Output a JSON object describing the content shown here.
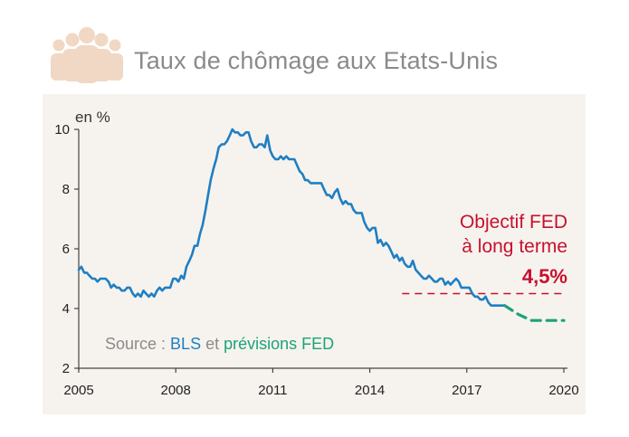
{
  "header": {
    "title": "Taux de chômage aux Etats-Unis",
    "icon": "people-group-icon"
  },
  "colors": {
    "actual": "#1f7fc4",
    "forecast": "#1aa37a",
    "target": "#c8102e",
    "panel": "#f6f3ee",
    "icon": "#f0d8c4"
  },
  "chart_data": {
    "type": "line",
    "title": "Taux de chômage aux Etats-Unis",
    "ylabel": "en %",
    "xlabel": "",
    "xlim": [
      2005,
      2020
    ],
    "ylim": [
      2,
      10
    ],
    "x_ticks": [
      2005,
      2008,
      2011,
      2014,
      2017,
      2020
    ],
    "y_ticks": [
      2,
      4,
      6,
      8,
      10
    ],
    "grid": false,
    "series": [
      {
        "name": "BLS",
        "x": [
          2005.0,
          2005.08,
          2005.17,
          2005.25,
          2005.33,
          2005.42,
          2005.5,
          2005.58,
          2005.67,
          2005.75,
          2005.83,
          2005.92,
          2006.0,
          2006.08,
          2006.17,
          2006.25,
          2006.33,
          2006.42,
          2006.5,
          2006.58,
          2006.67,
          2006.75,
          2006.83,
          2006.92,
          2007.0,
          2007.08,
          2007.17,
          2007.25,
          2007.33,
          2007.42,
          2007.5,
          2007.58,
          2007.67,
          2007.75,
          2007.83,
          2007.92,
          2008.0,
          2008.08,
          2008.17,
          2008.25,
          2008.33,
          2008.42,
          2008.5,
          2008.58,
          2008.67,
          2008.75,
          2008.83,
          2008.92,
          2009.0,
          2009.08,
          2009.17,
          2009.25,
          2009.33,
          2009.42,
          2009.5,
          2009.58,
          2009.67,
          2009.75,
          2009.83,
          2009.92,
          2010.0,
          2010.08,
          2010.17,
          2010.25,
          2010.33,
          2010.42,
          2010.5,
          2010.58,
          2010.67,
          2010.75,
          2010.83,
          2010.92,
          2011.0,
          2011.08,
          2011.17,
          2011.25,
          2011.33,
          2011.42,
          2011.5,
          2011.58,
          2011.67,
          2011.75,
          2011.83,
          2011.92,
          2012.0,
          2012.08,
          2012.17,
          2012.25,
          2012.33,
          2012.42,
          2012.5,
          2012.58,
          2012.67,
          2012.75,
          2012.83,
          2012.92,
          2013.0,
          2013.08,
          2013.17,
          2013.25,
          2013.33,
          2013.42,
          2013.5,
          2013.58,
          2013.67,
          2013.75,
          2013.83,
          2013.92,
          2014.0,
          2014.08,
          2014.17,
          2014.25,
          2014.33,
          2014.42,
          2014.5,
          2014.58,
          2014.67,
          2014.75,
          2014.83,
          2014.92,
          2015.0,
          2015.08,
          2015.17,
          2015.25,
          2015.33,
          2015.42,
          2015.5,
          2015.58,
          2015.67,
          2015.75,
          2015.83,
          2015.92,
          2016.0,
          2016.08,
          2016.17,
          2016.25,
          2016.33,
          2016.42,
          2016.5,
          2016.58,
          2016.67,
          2016.75,
          2016.83,
          2016.92,
          2017.0,
          2017.08,
          2017.17,
          2017.25,
          2017.33,
          2017.42,
          2017.5,
          2017.58,
          2017.67,
          2017.75,
          2017.83,
          2017.92,
          2018.0,
          2018.08,
          2018.17
        ],
        "values": [
          5.3,
          5.4,
          5.2,
          5.2,
          5.1,
          5.0,
          5.0,
          4.9,
          5.0,
          5.0,
          5.0,
          4.9,
          4.7,
          4.8,
          4.7,
          4.7,
          4.6,
          4.6,
          4.7,
          4.7,
          4.5,
          4.4,
          4.5,
          4.4,
          4.6,
          4.5,
          4.4,
          4.5,
          4.4,
          4.6,
          4.7,
          4.6,
          4.7,
          4.7,
          4.7,
          5.0,
          5.0,
          4.9,
          5.1,
          5.0,
          5.4,
          5.6,
          5.8,
          6.1,
          6.1,
          6.5,
          6.8,
          7.3,
          7.8,
          8.3,
          8.7,
          9.0,
          9.4,
          9.5,
          9.5,
          9.6,
          9.8,
          10.0,
          9.9,
          9.9,
          9.8,
          9.8,
          9.9,
          9.9,
          9.6,
          9.4,
          9.4,
          9.5,
          9.5,
          9.4,
          9.8,
          9.3,
          9.1,
          9.0,
          9.0,
          9.1,
          9.0,
          9.1,
          9.0,
          9.0,
          9.0,
          8.8,
          8.6,
          8.5,
          8.3,
          8.3,
          8.2,
          8.2,
          8.2,
          8.2,
          8.2,
          8.0,
          7.8,
          7.8,
          7.7,
          7.9,
          8.0,
          7.7,
          7.5,
          7.6,
          7.5,
          7.5,
          7.3,
          7.2,
          7.2,
          7.2,
          6.9,
          6.7,
          6.6,
          6.7,
          6.7,
          6.2,
          6.3,
          6.1,
          6.2,
          6.1,
          5.9,
          5.7,
          5.8,
          5.6,
          5.7,
          5.5,
          5.4,
          5.4,
          5.6,
          5.3,
          5.2,
          5.1,
          5.0,
          5.0,
          5.1,
          5.0,
          4.9,
          4.9,
          5.0,
          5.0,
          4.8,
          4.9,
          4.8,
          4.9,
          5.0,
          4.9,
          4.7,
          4.7,
          4.7,
          4.7,
          4.5,
          4.4,
          4.4,
          4.3,
          4.3,
          4.4,
          4.2,
          4.1,
          4.1,
          4.1,
          4.1,
          4.1,
          4.1
        ]
      },
      {
        "name": "prévisions FED",
        "dashed": true,
        "x": [
          2018.17,
          2018.6,
          2019.0,
          2019.5,
          2020.0
        ],
        "values": [
          4.1,
          3.8,
          3.6,
          3.6,
          3.6
        ]
      }
    ],
    "reference_line": {
      "value": 4.5,
      "x_start": 2015.0,
      "x_end": 2020.0,
      "style": "dashed"
    },
    "annotations": {
      "target_line1": "Objectif FED",
      "target_line2": "à long terme",
      "target_value": "4,5%"
    },
    "source": {
      "prefix": "Source : ",
      "bls": "BLS",
      "middle": " et ",
      "fed": "prévisions FED"
    }
  }
}
